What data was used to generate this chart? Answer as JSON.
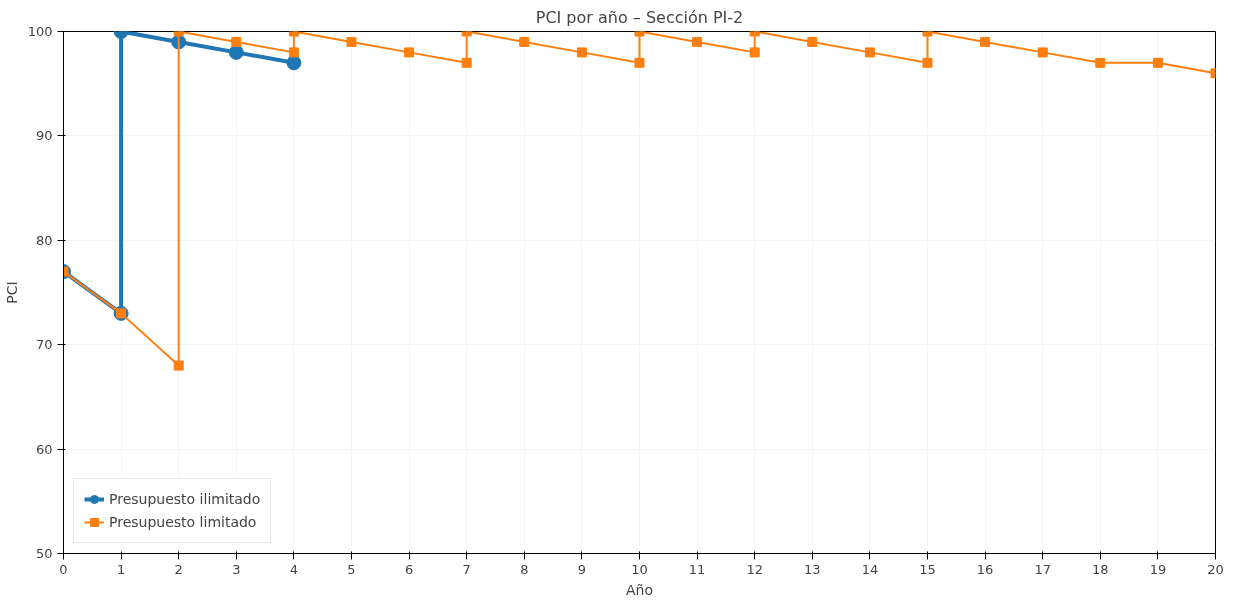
{
  "chart_data": {
    "type": "line",
    "title": "PCI por año – Sección PI-2",
    "xlabel": "Año",
    "ylabel": "PCI",
    "xlim": [
      0,
      20
    ],
    "xticks": [
      0,
      1,
      2,
      3,
      4,
      5,
      6,
      7,
      8,
      9,
      10,
      11,
      12,
      13,
      14,
      15,
      16,
      17,
      18,
      19,
      20
    ],
    "ylim": [
      50,
      100
    ],
    "yticks": [
      50,
      60,
      70,
      80,
      90,
      100
    ],
    "grid": true,
    "legend": "bottom left",
    "line_style": "solid",
    "series": [
      {
        "name": "Presupuesto ilimitado",
        "color": "#1f77b4",
        "marker": "circle",
        "x": [
          0,
          1,
          1,
          2,
          3,
          4
        ],
        "values": [
          77,
          73,
          100,
          99,
          98,
          97
        ]
      },
      {
        "name": "Presupuesto limitado",
        "color": "#ff7f0e",
        "marker": "square",
        "x": [
          0,
          1,
          2,
          2,
          3,
          4,
          4,
          5,
          6,
          7,
          7,
          8,
          9,
          10,
          10,
          11,
          12,
          12,
          13,
          14,
          15,
          15,
          16,
          17,
          18,
          19,
          20
        ],
        "values": [
          77,
          73,
          68,
          100,
          99,
          98,
          100,
          99,
          98,
          97,
          100,
          99,
          98,
          97,
          100,
          99,
          98,
          100,
          99,
          98,
          97,
          100,
          99,
          98,
          97,
          97,
          96
        ]
      }
    ]
  }
}
